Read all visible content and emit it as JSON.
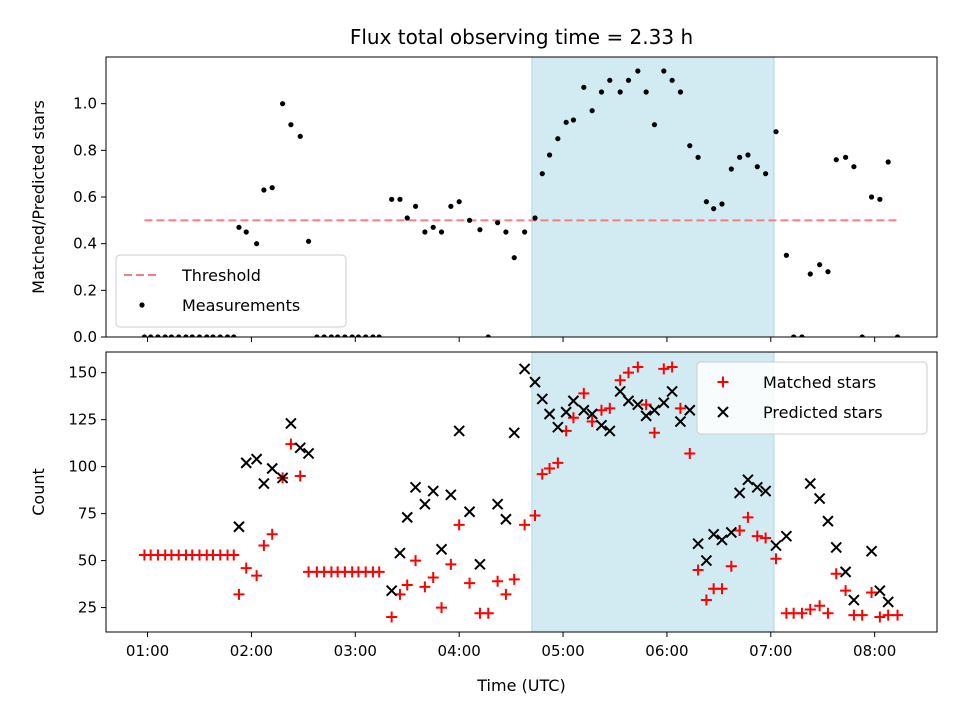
{
  "chart_data": [
    {
      "type": "scatter",
      "title": "Flux total observing time = 2.33 h",
      "ylabel": "Matched/Predicted stars",
      "xlabel": "",
      "ylim": [
        0,
        1.2
      ],
      "xlim": [
        0.6,
        8.6
      ],
      "yticks": [
        0.0,
        0.2,
        0.4,
        0.6,
        0.8,
        1.0
      ],
      "ytick_labels": [
        "0.0",
        "0.2",
        "0.4",
        "0.6",
        "0.8",
        "1.0"
      ],
      "grid": false,
      "legend_position": "bottom-left",
      "highlight_span": {
        "x": [
          4.7,
          7.03
        ],
        "color": "#add8e6"
      },
      "threshold": {
        "name": "Threshold",
        "value": 0.5,
        "x": [
          0.97,
          8.23
        ],
        "color": "#f08080"
      },
      "series": [
        {
          "name": "Measurements",
          "color": "#000000",
          "marker": "dot",
          "points": [
            [
              0.97,
              0
            ],
            [
              1.03,
              0
            ],
            [
              1.1,
              0
            ],
            [
              1.17,
              0
            ],
            [
              1.23,
              0
            ],
            [
              1.3,
              0
            ],
            [
              1.37,
              0
            ],
            [
              1.43,
              0
            ],
            [
              1.5,
              0
            ],
            [
              1.57,
              0
            ],
            [
              1.63,
              0
            ],
            [
              1.7,
              0
            ],
            [
              1.77,
              0
            ],
            [
              1.83,
              0
            ],
            [
              1.88,
              0.47
            ],
            [
              1.95,
              0.45
            ],
            [
              2.05,
              0.4
            ],
            [
              2.12,
              0.63
            ],
            [
              2.2,
              0.64
            ],
            [
              2.3,
              1.0
            ],
            [
              2.38,
              0.91
            ],
            [
              2.47,
              0.86
            ],
            [
              2.55,
              0.41
            ],
            [
              2.63,
              0
            ],
            [
              2.7,
              0
            ],
            [
              2.77,
              0
            ],
            [
              2.83,
              0
            ],
            [
              2.9,
              0
            ],
            [
              2.97,
              0
            ],
            [
              3.03,
              0
            ],
            [
              3.1,
              0
            ],
            [
              3.17,
              0
            ],
            [
              3.23,
              0
            ],
            [
              3.35,
              0.59
            ],
            [
              3.43,
              0.59
            ],
            [
              3.5,
              0.51
            ],
            [
              3.58,
              0.56
            ],
            [
              3.67,
              0.45
            ],
            [
              3.75,
              0.47
            ],
            [
              3.83,
              0.45
            ],
            [
              3.92,
              0.56
            ],
            [
              4.0,
              0.58
            ],
            [
              4.1,
              0.5
            ],
            [
              4.2,
              0.46
            ],
            [
              4.28,
              0
            ],
            [
              4.37,
              0.49
            ],
            [
              4.45,
              0.45
            ],
            [
              4.53,
              0.34
            ],
            [
              4.63,
              0.45
            ],
            [
              4.73,
              0.51
            ],
            [
              4.8,
              0.7
            ],
            [
              4.87,
              0.78
            ],
            [
              4.95,
              0.85
            ],
            [
              5.03,
              0.92
            ],
            [
              5.1,
              0.93
            ],
            [
              5.2,
              1.07
            ],
            [
              5.28,
              0.97
            ],
            [
              5.37,
              1.05
            ],
            [
              5.45,
              1.1
            ],
            [
              5.55,
              1.05
            ],
            [
              5.63,
              1.1
            ],
            [
              5.72,
              1.14
            ],
            [
              5.8,
              1.05
            ],
            [
              5.88,
              0.91
            ],
            [
              5.97,
              1.14
            ],
            [
              6.05,
              1.1
            ],
            [
              6.13,
              1.05
            ],
            [
              6.22,
              0.82
            ],
            [
              6.3,
              0.77
            ],
            [
              6.38,
              0.58
            ],
            [
              6.45,
              0.55
            ],
            [
              6.53,
              0.57
            ],
            [
              6.62,
              0.72
            ],
            [
              6.7,
              0.77
            ],
            [
              6.78,
              0.78
            ],
            [
              6.87,
              0.73
            ],
            [
              6.95,
              0.7
            ],
            [
              7.05,
              0.88
            ],
            [
              7.15,
              0.35
            ],
            [
              7.22,
              0
            ],
            [
              7.3,
              0
            ],
            [
              7.38,
              0.27
            ],
            [
              7.47,
              0.31
            ],
            [
              7.55,
              0.28
            ],
            [
              7.63,
              0.76
            ],
            [
              7.72,
              0.77
            ],
            [
              7.8,
              0.73
            ],
            [
              7.88,
              0
            ],
            [
              7.97,
              0.6
            ],
            [
              8.05,
              0.59
            ],
            [
              8.13,
              0.75
            ],
            [
              8.22,
              0
            ]
          ]
        }
      ]
    },
    {
      "type": "scatter",
      "title": "",
      "ylabel": "Count",
      "xlabel": "Time (UTC)",
      "ylim": [
        12,
        161
      ],
      "xlim": [
        0.6,
        8.6
      ],
      "yticks": [
        25,
        50,
        75,
        100,
        125,
        150
      ],
      "ytick_labels": [
        "25",
        "50",
        "75",
        "100",
        "125",
        "150"
      ],
      "xticks": [
        1,
        2,
        3,
        4,
        5,
        6,
        7,
        8
      ],
      "xtick_labels": [
        "01:00",
        "02:00",
        "03:00",
        "04:00",
        "05:00",
        "06:00",
        "07:00",
        "08:00"
      ],
      "grid": false,
      "legend_position": "top-right",
      "highlight_span": {
        "x": [
          4.7,
          7.03
        ],
        "color": "#add8e6"
      },
      "series": [
        {
          "name": "Matched stars",
          "color": "#ff0000",
          "marker": "plus",
          "points": [
            [
              0.97,
              53
            ],
            [
              1.03,
              53
            ],
            [
              1.1,
              53
            ],
            [
              1.17,
              53
            ],
            [
              1.23,
              53
            ],
            [
              1.3,
              53
            ],
            [
              1.37,
              53
            ],
            [
              1.43,
              53
            ],
            [
              1.5,
              53
            ],
            [
              1.57,
              53
            ],
            [
              1.63,
              53
            ],
            [
              1.7,
              53
            ],
            [
              1.77,
              53
            ],
            [
              1.83,
              53
            ],
            [
              1.88,
              32
            ],
            [
              1.95,
              46
            ],
            [
              2.05,
              42
            ],
            [
              2.12,
              58
            ],
            [
              2.2,
              64
            ],
            [
              2.3,
              94
            ],
            [
              2.38,
              112
            ],
            [
              2.47,
              95
            ],
            [
              2.55,
              44
            ],
            [
              2.63,
              44
            ],
            [
              2.7,
              44
            ],
            [
              2.77,
              44
            ],
            [
              2.83,
              44
            ],
            [
              2.9,
              44
            ],
            [
              2.97,
              44
            ],
            [
              3.03,
              44
            ],
            [
              3.1,
              44
            ],
            [
              3.17,
              44
            ],
            [
              3.23,
              44
            ],
            [
              3.35,
              20
            ],
            [
              3.43,
              32
            ],
            [
              3.5,
              37
            ],
            [
              3.58,
              50
            ],
            [
              3.67,
              36
            ],
            [
              3.75,
              41
            ],
            [
              3.83,
              25
            ],
            [
              3.92,
              48
            ],
            [
              4.0,
              69
            ],
            [
              4.1,
              38
            ],
            [
              4.2,
              22
            ],
            [
              4.28,
              22
            ],
            [
              4.37,
              39
            ],
            [
              4.45,
              32
            ],
            [
              4.53,
              40
            ],
            [
              4.63,
              69
            ],
            [
              4.73,
              74
            ],
            [
              4.8,
              96
            ],
            [
              4.87,
              99
            ],
            [
              4.95,
              102
            ],
            [
              5.03,
              119
            ],
            [
              5.1,
              126
            ],
            [
              5.2,
              139
            ],
            [
              5.28,
              124
            ],
            [
              5.37,
              130
            ],
            [
              5.45,
              131
            ],
            [
              5.55,
              146
            ],
            [
              5.63,
              150
            ],
            [
              5.72,
              153
            ],
            [
              5.8,
              133
            ],
            [
              5.88,
              118
            ],
            [
              5.97,
              152
            ],
            [
              6.05,
              153
            ],
            [
              6.13,
              131
            ],
            [
              6.22,
              107
            ],
            [
              6.3,
              45
            ],
            [
              6.38,
              29
            ],
            [
              6.45,
              35
            ],
            [
              6.53,
              35
            ],
            [
              6.62,
              47
            ],
            [
              6.7,
              66
            ],
            [
              6.78,
              73
            ],
            [
              6.87,
              63
            ],
            [
              6.95,
              62
            ],
            [
              7.05,
              51
            ],
            [
              7.15,
              22
            ],
            [
              7.22,
              22
            ],
            [
              7.3,
              22
            ],
            [
              7.38,
              24
            ],
            [
              7.47,
              26
            ],
            [
              7.55,
              22
            ],
            [
              7.63,
              43
            ],
            [
              7.72,
              34
            ],
            [
              7.8,
              21
            ],
            [
              7.88,
              21
            ],
            [
              7.97,
              33
            ],
            [
              8.05,
              20
            ],
            [
              8.13,
              21
            ],
            [
              8.22,
              21
            ]
          ]
        },
        {
          "name": "Predicted stars",
          "color": "#000000",
          "marker": "x",
          "points": [
            [
              1.88,
              68
            ],
            [
              1.95,
              102
            ],
            [
              2.05,
              104
            ],
            [
              2.12,
              91
            ],
            [
              2.2,
              99
            ],
            [
              2.3,
              94
            ],
            [
              2.38,
              123
            ],
            [
              2.47,
              110
            ],
            [
              2.55,
              107
            ],
            [
              3.35,
              34
            ],
            [
              3.43,
              54
            ],
            [
              3.5,
              73
            ],
            [
              3.58,
              89
            ],
            [
              3.67,
              80
            ],
            [
              3.75,
              87
            ],
            [
              3.83,
              56
            ],
            [
              3.92,
              85
            ],
            [
              4.0,
              119
            ],
            [
              4.1,
              76
            ],
            [
              4.2,
              48
            ],
            [
              4.37,
              80
            ],
            [
              4.45,
              72
            ],
            [
              4.53,
              118
            ],
            [
              4.63,
              152
            ],
            [
              4.73,
              145
            ],
            [
              4.8,
              136
            ],
            [
              4.87,
              128
            ],
            [
              4.95,
              121
            ],
            [
              5.03,
              129
            ],
            [
              5.1,
              135
            ],
            [
              5.2,
              130
            ],
            [
              5.28,
              128
            ],
            [
              5.37,
              122
            ],
            [
              5.45,
              119
            ],
            [
              5.55,
              140
            ],
            [
              5.63,
              135
            ],
            [
              5.72,
              133
            ],
            [
              5.8,
              127
            ],
            [
              5.88,
              130
            ],
            [
              5.97,
              134
            ],
            [
              6.05,
              140
            ],
            [
              6.13,
              124
            ],
            [
              6.22,
              130
            ],
            [
              6.3,
              59
            ],
            [
              6.38,
              50
            ],
            [
              6.45,
              64
            ],
            [
              6.53,
              61
            ],
            [
              6.62,
              65
            ],
            [
              6.7,
              86
            ],
            [
              6.78,
              93
            ],
            [
              6.87,
              89
            ],
            [
              6.95,
              87
            ],
            [
              7.05,
              58
            ],
            [
              7.15,
              63
            ],
            [
              7.38,
              91
            ],
            [
              7.47,
              83
            ],
            [
              7.55,
              71
            ],
            [
              7.63,
              57
            ],
            [
              7.72,
              44
            ],
            [
              7.8,
              29
            ],
            [
              7.97,
              55
            ],
            [
              8.05,
              34
            ],
            [
              8.13,
              28
            ]
          ]
        }
      ]
    }
  ]
}
